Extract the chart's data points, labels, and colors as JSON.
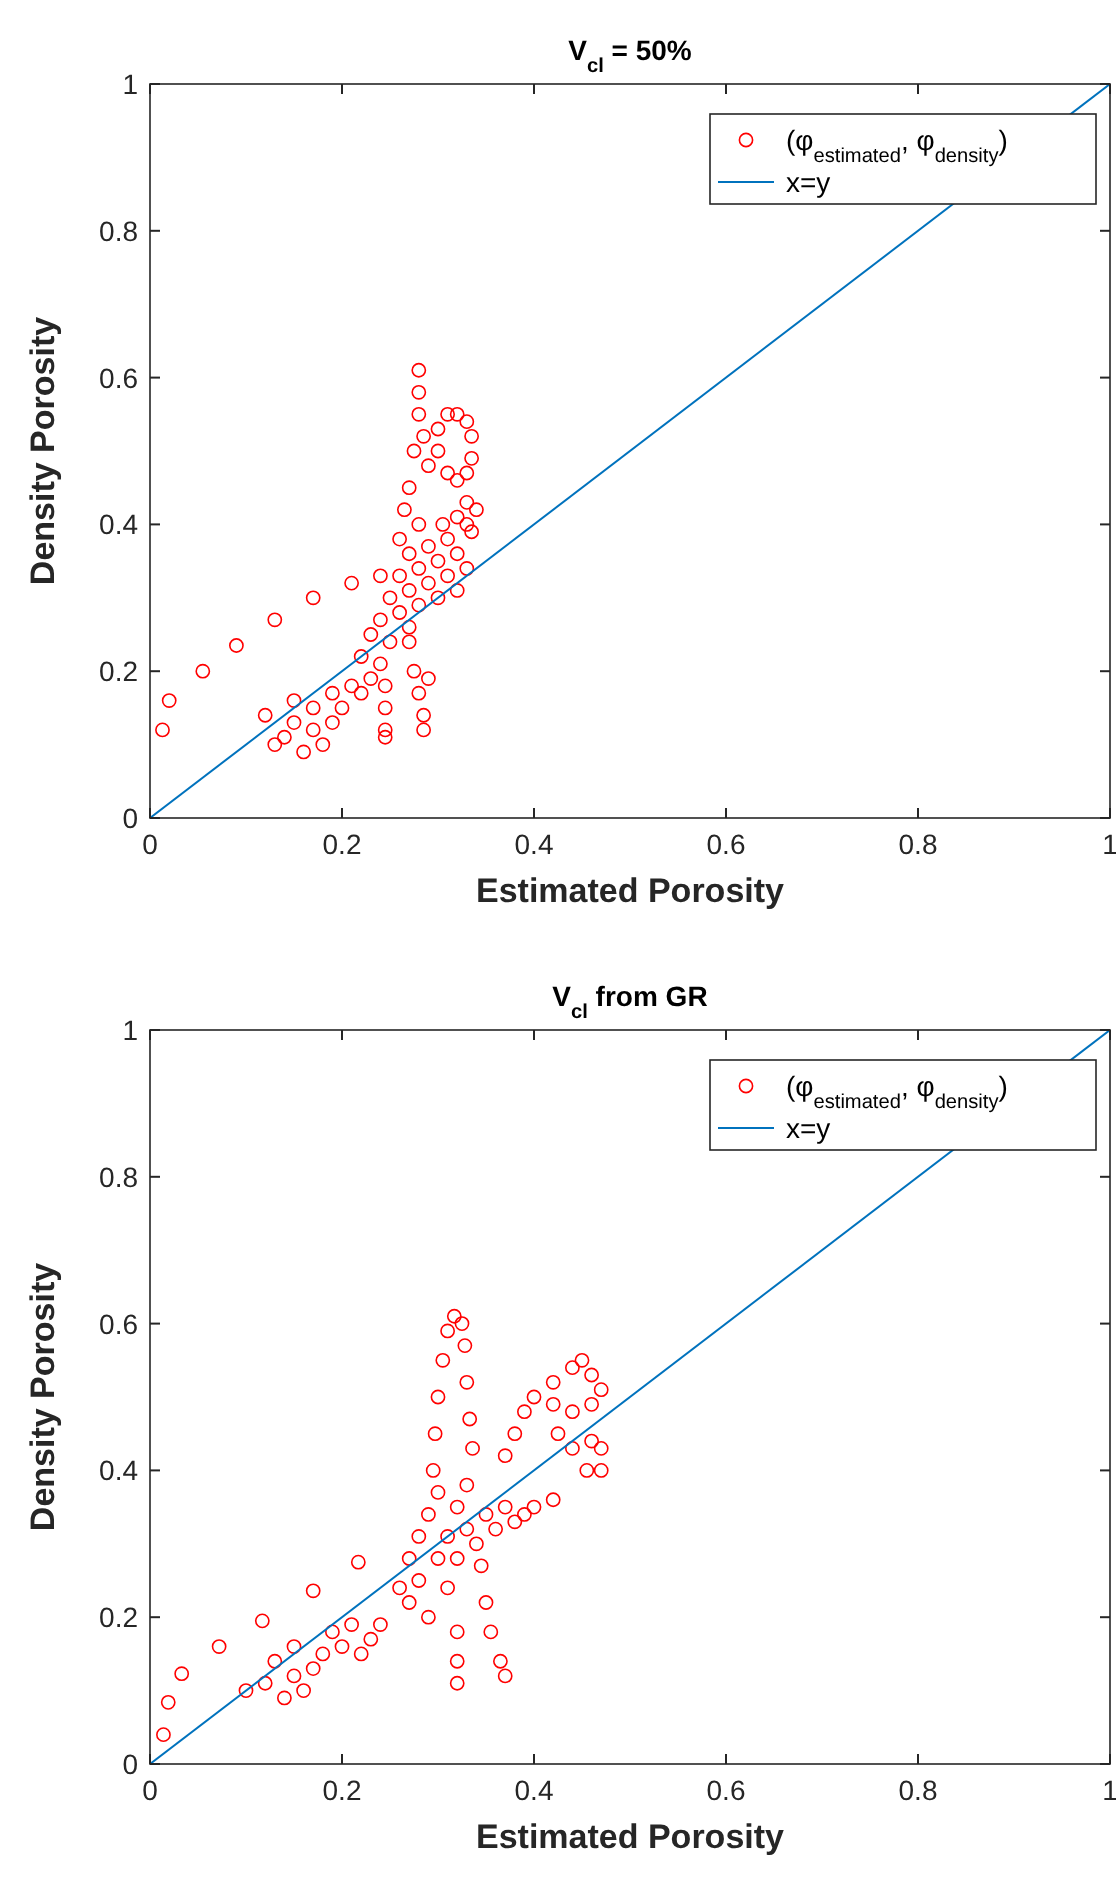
{
  "chart_data": [
    {
      "type": "scatter",
      "title": "V$_{cl}$ = 50%",
      "xlabel": "Estimated Porosity",
      "ylabel": "Density Porosity",
      "xlim": [
        0,
        1
      ],
      "ylim": [
        0,
        1
      ],
      "xticks": [
        0,
        0.2,
        0.4,
        0.6,
        0.8,
        1
      ],
      "yticks": [
        0,
        0.2,
        0.4,
        0.6,
        0.8,
        1
      ],
      "legend": "top right",
      "series": [
        {
          "name": "(φ$_{estimated}$, φ$_{density}$)",
          "marker": "circle",
          "color": "#ff0000",
          "x": [
            0.013,
            0.02,
            0.055,
            0.09,
            0.13,
            0.17,
            0.21,
            0.24,
            0.12,
            0.13,
            0.14,
            0.15,
            0.15,
            0.16,
            0.17,
            0.17,
            0.18,
            0.19,
            0.19,
            0.2,
            0.21,
            0.22,
            0.22,
            0.23,
            0.23,
            0.24,
            0.24,
            0.25,
            0.25,
            0.26,
            0.26,
            0.27,
            0.27,
            0.27,
            0.28,
            0.28,
            0.28,
            0.29,
            0.29,
            0.3,
            0.3,
            0.31,
            0.31,
            0.32,
            0.32,
            0.33,
            0.33,
            0.28,
            0.28,
            0.28,
            0.275,
            0.27,
            0.265,
            0.26,
            0.285,
            0.29,
            0.3,
            0.31,
            0.32,
            0.33,
            0.335,
            0.335,
            0.33,
            0.3,
            0.31,
            0.32,
            0.34,
            0.335,
            0.33,
            0.32,
            0.305,
            0.245,
            0.245,
            0.245,
            0.245,
            0.27,
            0.275,
            0.28,
            0.285,
            0.285,
            0.29
          ],
          "values": [
            0.12,
            0.16,
            0.2,
            0.235,
            0.27,
            0.3,
            0.32,
            0.33,
            0.14,
            0.1,
            0.11,
            0.13,
            0.16,
            0.09,
            0.12,
            0.15,
            0.1,
            0.13,
            0.17,
            0.15,
            0.18,
            0.17,
            0.22,
            0.25,
            0.19,
            0.21,
            0.27,
            0.24,
            0.3,
            0.28,
            0.33,
            0.26,
            0.31,
            0.36,
            0.29,
            0.34,
            0.4,
            0.32,
            0.37,
            0.3,
            0.35,
            0.33,
            0.38,
            0.31,
            0.36,
            0.4,
            0.34,
            0.61,
            0.58,
            0.55,
            0.5,
            0.45,
            0.42,
            0.38,
            0.52,
            0.48,
            0.53,
            0.55,
            0.55,
            0.54,
            0.52,
            0.49,
            0.47,
            0.5,
            0.47,
            0.46,
            0.42,
            0.39,
            0.43,
            0.41,
            0.4,
            0.18,
            0.15,
            0.12,
            0.11,
            0.24,
            0.2,
            0.17,
            0.14,
            0.12,
            0.19
          ]
        },
        {
          "name": "x=y",
          "type": "line",
          "line_style": "solid",
          "color": "#0072bd",
          "x": [
            0,
            1
          ],
          "values": [
            0,
            1
          ]
        }
      ]
    },
    {
      "type": "scatter",
      "title": "V$_{cl}$ from GR",
      "xlabel": "Estimated Porosity",
      "ylabel": "Density Porosity",
      "xlim": [
        0,
        1
      ],
      "ylim": [
        0,
        1
      ],
      "xticks": [
        0,
        0.2,
        0.4,
        0.6,
        0.8,
        1
      ],
      "yticks": [
        0,
        0.2,
        0.4,
        0.6,
        0.8,
        1
      ],
      "legend": "top right",
      "series": [
        {
          "name": "(φ$_{estimated}$, φ$_{density}$)",
          "marker": "circle",
          "color": "#ff0000",
          "x": [
            0.014,
            0.019,
            0.033,
            0.072,
            0.117,
            0.17,
            0.217,
            0.1,
            0.12,
            0.13,
            0.14,
            0.15,
            0.15,
            0.16,
            0.17,
            0.18,
            0.19,
            0.2,
            0.21,
            0.22,
            0.23,
            0.24,
            0.26,
            0.27,
            0.27,
            0.28,
            0.28,
            0.29,
            0.29,
            0.3,
            0.3,
            0.31,
            0.31,
            0.32,
            0.32,
            0.33,
            0.33,
            0.34,
            0.35,
            0.36,
            0.37,
            0.38,
            0.39,
            0.295,
            0.297,
            0.3,
            0.305,
            0.31,
            0.317,
            0.325,
            0.328,
            0.33,
            0.333,
            0.336,
            0.32,
            0.32,
            0.32,
            0.345,
            0.35,
            0.355,
            0.365,
            0.37,
            0.37,
            0.38,
            0.39,
            0.4,
            0.42,
            0.44,
            0.45,
            0.46,
            0.47,
            0.46,
            0.44,
            0.42,
            0.425,
            0.44,
            0.46,
            0.47,
            0.47,
            0.455,
            0.42,
            0.4
          ],
          "values": [
            0.04,
            0.084,
            0.123,
            0.16,
            0.195,
            0.236,
            0.275,
            0.1,
            0.11,
            0.14,
            0.09,
            0.12,
            0.16,
            0.1,
            0.13,
            0.15,
            0.18,
            0.16,
            0.19,
            0.15,
            0.17,
            0.19,
            0.24,
            0.28,
            0.22,
            0.31,
            0.25,
            0.34,
            0.2,
            0.28,
            0.37,
            0.31,
            0.24,
            0.35,
            0.28,
            0.32,
            0.38,
            0.3,
            0.34,
            0.32,
            0.35,
            0.33,
            0.34,
            0.4,
            0.45,
            0.5,
            0.55,
            0.59,
            0.61,
            0.6,
            0.57,
            0.52,
            0.47,
            0.43,
            0.18,
            0.14,
            0.11,
            0.27,
            0.22,
            0.18,
            0.14,
            0.12,
            0.42,
            0.45,
            0.48,
            0.5,
            0.52,
            0.54,
            0.55,
            0.53,
            0.51,
            0.49,
            0.48,
            0.49,
            0.45,
            0.43,
            0.44,
            0.43,
            0.4,
            0.4,
            0.36,
            0.35
          ]
        },
        {
          "name": "x=y",
          "type": "line",
          "line_style": "solid",
          "color": "#0072bd",
          "x": [
            0,
            1
          ],
          "values": [
            0,
            1
          ]
        }
      ]
    }
  ]
}
